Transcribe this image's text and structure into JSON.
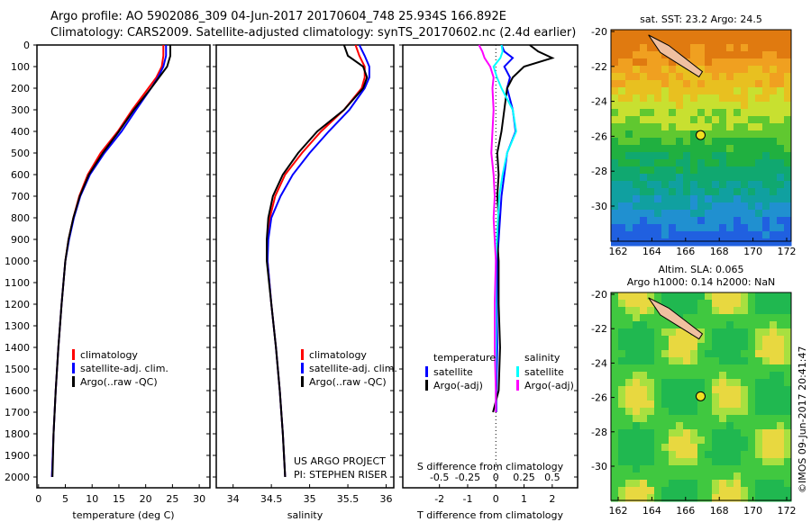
{
  "header": {
    "line1": "Argo profile: AO 5902086_309 04-Jun-2017 20170604_748 25.934S 166.892E",
    "line2": "Climatology: CARS2009. Satellite-adjusted climatology: synTS_20170602.nc (2.4d earlier)"
  },
  "credit": "US ARGO PROJECT",
  "pi": "PI: STEPHEN RISER",
  "stamp": "©IMOS 09-Jun-2017 20:41:47",
  "colors": {
    "clim": "#ff0000",
    "sat": "#0000ff",
    "argo": "#000000",
    "sal_sat": "#00ffff",
    "sal_argo": "#ff00ff"
  },
  "chart_data": [
    {
      "type": "line",
      "id": "temp",
      "xlabel": "temperature (deg C)",
      "ylabel": "depth",
      "xlim": [
        -0.3,
        32
      ],
      "ylim": [
        2050,
        0
      ],
      "xticks": [
        "0",
        "5",
        "10",
        "15",
        "20",
        "25",
        "30"
      ],
      "xtickvals": [
        0,
        5,
        10,
        15,
        20,
        25,
        30
      ],
      "yticks": [
        "0",
        "100",
        "200",
        "300",
        "400",
        "500",
        "600",
        "700",
        "800",
        "900",
        "1000",
        "1100",
        "1200",
        "1300",
        "1400",
        "1500",
        "1600",
        "1700",
        "1800",
        "1900",
        "2000"
      ],
      "depth": [
        0,
        50,
        100,
        150,
        200,
        300,
        400,
        500,
        600,
        700,
        800,
        900,
        1000,
        1200,
        1400,
        1600,
        1800,
        2000
      ],
      "legend": [
        "climatology",
        "satellite-adj. clim.",
        "Argo(..raw -QC)"
      ],
      "series": [
        {
          "name": "climatology",
          "values": [
            23.3,
            23.3,
            23.0,
            22.0,
            20.5,
            17.5,
            14.8,
            11.6,
            9.2,
            7.6,
            6.5,
            5.6,
            5.0,
            4.3,
            3.7,
            3.2,
            2.8,
            2.5
          ]
        },
        {
          "name": "satellite",
          "values": [
            23.8,
            23.8,
            23.3,
            22.3,
            21.0,
            18.2,
            15.5,
            12.3,
            9.6,
            7.8,
            6.6,
            5.7,
            5.0,
            4.3,
            3.7,
            3.2,
            2.8,
            2.5
          ]
        },
        {
          "name": "argo",
          "values": [
            24.6,
            24.6,
            24.0,
            22.5,
            21.0,
            17.8,
            15.0,
            12.0,
            9.4,
            7.7,
            6.5,
            5.6,
            5.0,
            4.3,
            3.7,
            3.2,
            2.8,
            2.6
          ]
        }
      ]
    },
    {
      "type": "line",
      "id": "sal",
      "xlabel": "salinity",
      "xlim": [
        33.78,
        36.1
      ],
      "ylim": [
        2050,
        0
      ],
      "xticks": [
        "34",
        "34.5",
        "35",
        "35.5",
        "36"
      ],
      "xtickvals": [
        34,
        34.5,
        35,
        35.5,
        36
      ],
      "depth": [
        0,
        50,
        100,
        150,
        200,
        300,
        400,
        500,
        600,
        700,
        800,
        900,
        1000,
        1200,
        1400,
        1600,
        1800,
        2000
      ],
      "legend": [
        "climatology",
        "satellite-adj. clim.",
        "Argo(..raw -QC)"
      ],
      "series": [
        {
          "name": "climatology",
          "values": [
            35.6,
            35.65,
            35.72,
            35.72,
            35.68,
            35.45,
            35.15,
            34.9,
            34.68,
            34.55,
            34.48,
            34.45,
            34.45,
            34.5,
            34.56,
            34.61,
            34.65,
            34.68
          ]
        },
        {
          "name": "satellite",
          "values": [
            35.65,
            35.72,
            35.78,
            35.78,
            35.72,
            35.52,
            35.25,
            35.0,
            34.78,
            34.62,
            34.5,
            34.46,
            34.45,
            34.5,
            34.56,
            34.61,
            34.65,
            34.68
          ]
        },
        {
          "name": "argo",
          "values": [
            35.45,
            35.5,
            35.7,
            35.75,
            35.7,
            35.45,
            35.1,
            34.85,
            34.65,
            34.52,
            34.46,
            34.44,
            34.44,
            34.5,
            34.56,
            34.61,
            34.65,
            34.68
          ]
        }
      ]
    },
    {
      "type": "line",
      "id": "diff",
      "xlabel": "T difference from climatology",
      "xlabel2": "S difference from climatology",
      "xlim": [
        -3.3,
        2.9
      ],
      "ylim": [
        2050,
        0
      ],
      "xticks": [
        "-2",
        "-1",
        "0",
        "1",
        "2"
      ],
      "xtickvals": [
        -2,
        -1,
        0,
        1,
        2
      ],
      "xticks2": [
        "-0.5",
        "-0.25",
        "0",
        "0.25",
        "0.5"
      ],
      "xtickvals2": [
        -0.5,
        -0.25,
        0,
        0.25,
        0.5
      ],
      "legend": {
        "temperature": "temperature",
        "salinity": "salinity",
        "t_sat": "satellite",
        "t_argo": "Argo(-adj)",
        "s_sat": "satellite",
        "s_argo": "Argo(-adj)"
      },
      "depth": [
        0,
        30,
        60,
        100,
        150,
        200,
        300,
        400,
        500,
        600,
        700,
        800,
        900,
        1000,
        1200,
        1400,
        1600,
        1700
      ],
      "series": [
        {
          "name": "T satellite",
          "values": [
            0.2,
            0.3,
            0.6,
            0.3,
            0.5,
            0.4,
            0.6,
            0.7,
            0.4,
            0.3,
            0.2,
            0.15,
            0.1,
            0.05,
            0.03,
            0.05,
            0.02,
            0.02
          ]
        },
        {
          "name": "T Argo(-adj)",
          "values": [
            1.2,
            1.5,
            2.0,
            1.0,
            0.6,
            0.4,
            0.3,
            0.2,
            0.05,
            0.1,
            0.05,
            0.1,
            0.05,
            0.1,
            0.1,
            0.15,
            0.1,
            -0.1
          ]
        },
        {
          "name": "S satellite",
          "values": [
            0.05,
            0.06,
            0.04,
            -0.02,
            0.01,
            0.05,
            0.15,
            0.18,
            0.1,
            0.06,
            0.03,
            0.02,
            0.01,
            0.0,
            0.0,
            0.0,
            0.0,
            0.0
          ]
        },
        {
          "name": "S Argo(-adj)",
          "values": [
            -0.15,
            -0.12,
            -0.1,
            -0.05,
            -0.02,
            -0.03,
            -0.02,
            -0.03,
            -0.04,
            -0.02,
            -0.01,
            -0.02,
            -0.01,
            0.0,
            -0.01,
            -0.01,
            0.0,
            0.0
          ]
        }
      ]
    },
    {
      "type": "heatmap",
      "id": "sst",
      "title": "sat. SST: 23.2 Argo: 24.5",
      "xticks": [
        "162",
        "164",
        "166",
        "168",
        "170",
        "172"
      ],
      "yticks": [
        "-20",
        "-22",
        "-24",
        "-26",
        "-28",
        "-30"
      ],
      "float": [
        166.892,
        -25.934
      ]
    },
    {
      "type": "heatmap",
      "id": "sla",
      "title": "Altim. SLA: 0.065",
      "title2": "Argo h1000: 0.14 h2000: NaN",
      "xticks": [
        "162",
        "164",
        "166",
        "168",
        "170",
        "172"
      ],
      "yticks": [
        "-20",
        "-22",
        "-24",
        "-26",
        "-28",
        "-30"
      ],
      "float": [
        166.892,
        -25.934
      ]
    }
  ]
}
